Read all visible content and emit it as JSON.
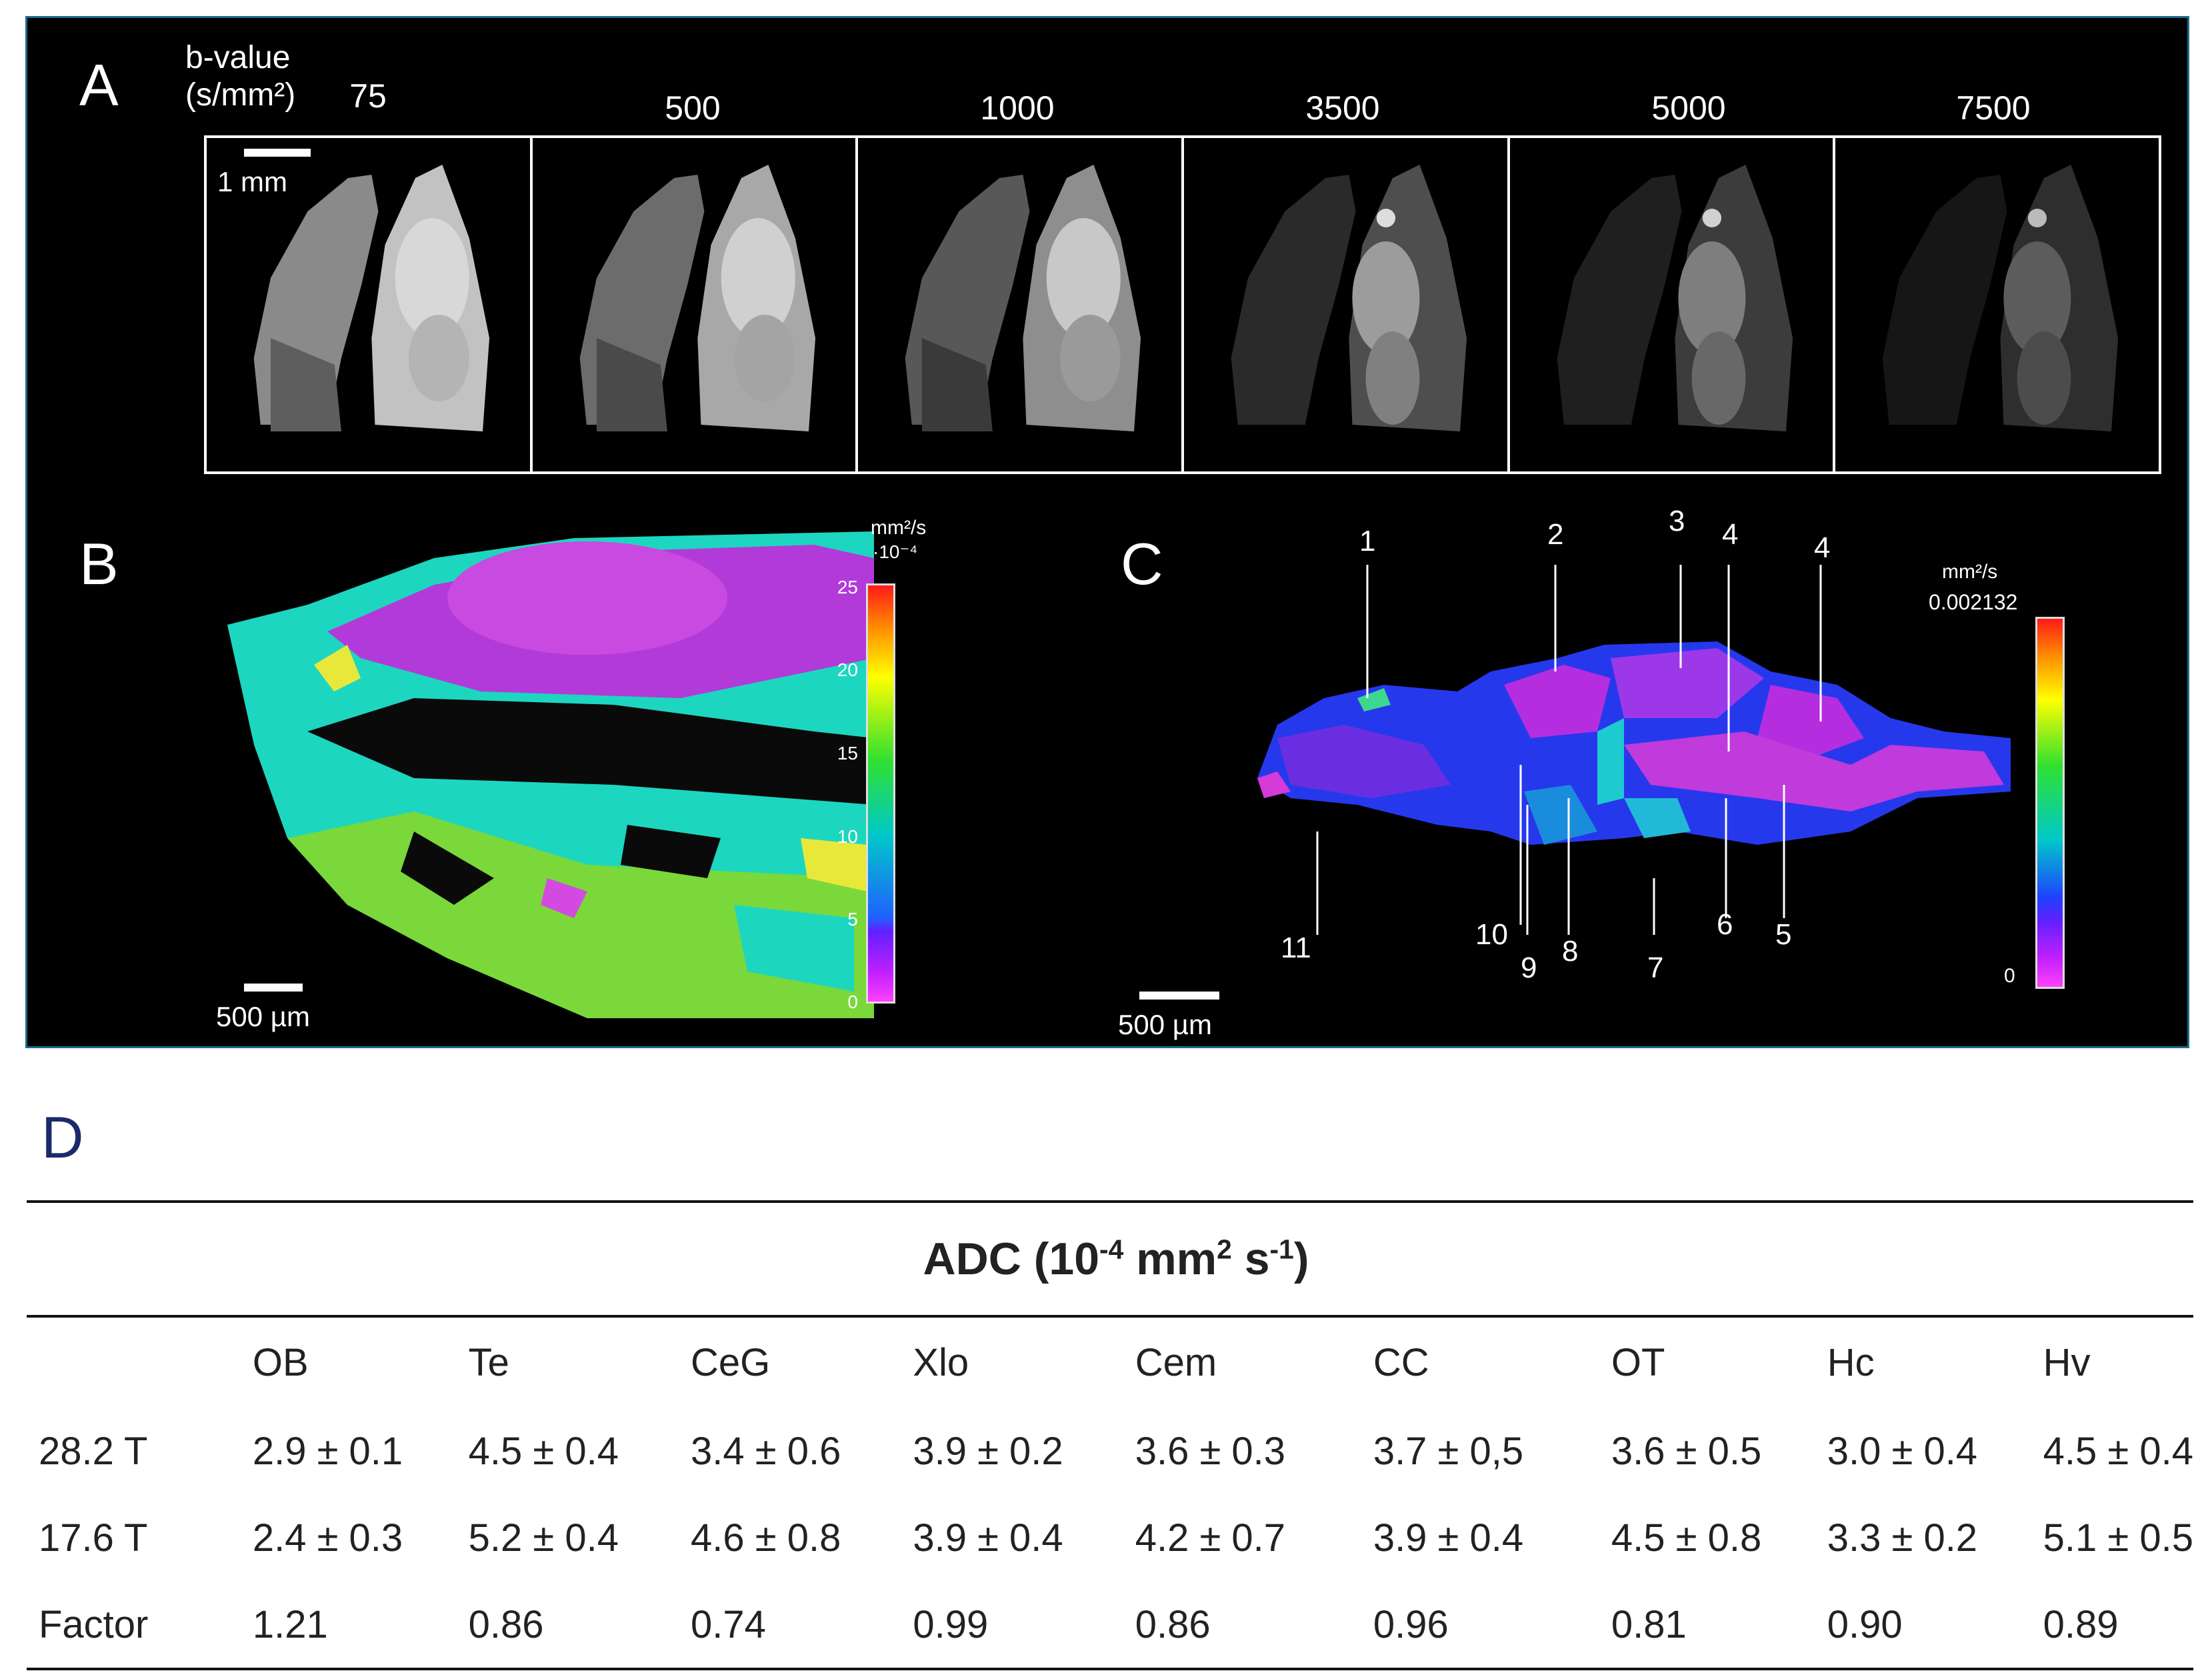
{
  "panel_a": {
    "letter": "A",
    "bvalue_label_line1": "b-value",
    "bvalue_label_line2": "(s/mm²)",
    "bvalues": [
      "75",
      "500",
      "1000",
      "3500",
      "5000",
      "7500"
    ],
    "scale_label": "1 mm"
  },
  "panel_b": {
    "letter": "B",
    "unit_line1": "mm²/s",
    "unit_line2": "·10⁻⁴",
    "ticks": [
      "25",
      "20",
      "15",
      "10",
      "5",
      "0"
    ],
    "scale_label": "500 µm"
  },
  "panel_c": {
    "letter": "C",
    "unit_line1": "mm²/s",
    "unit_max": "0.002132",
    "unit_min": "0",
    "callouts": [
      "1",
      "2",
      "3",
      "4",
      "4",
      "11",
      "10",
      "9",
      "8",
      "7",
      "6",
      "5"
    ],
    "scale_label": "500  µm"
  },
  "panel_d": {
    "letter": "D",
    "title": "ADC  (10-4 mm2 s-1)",
    "columns": [
      "",
      "OB",
      "Te",
      "CeG",
      "Xlo",
      "Cem",
      "CC",
      "OT",
      "Hc",
      "Hv"
    ],
    "rows": [
      [
        "28.2 T",
        "2.9 ± 0.1",
        "4.5 ± 0.4",
        "3.4 ± 0.6",
        "3.9 ± 0.2",
        "3.6 ± 0.3",
        "3.7 ± 0,5",
        "3.6 ± 0.5",
        "3.0 ± 0.4",
        "4.5 ± 0.4"
      ],
      [
        "17.6 T",
        "2.4 ± 0.3",
        "5.2 ± 0.4",
        "4.6 ± 0.8",
        "3.9 ± 0.4",
        "4.2 ± 0.7",
        "3.9 ± 0.4",
        "4.5 ± 0.8",
        "3.3 ± 0.2",
        "5.1 ± 0.5"
      ],
      [
        "Factor",
        "1.21",
        "0.86",
        "0.74",
        "0.99",
        "0.86",
        "0.96",
        "0.81",
        "0.90",
        "0.89"
      ]
    ]
  },
  "colors": {
    "figure_background": "#000000",
    "frame_border": "#1b6d8c",
    "panel_d_label": "#1b2a6b"
  }
}
